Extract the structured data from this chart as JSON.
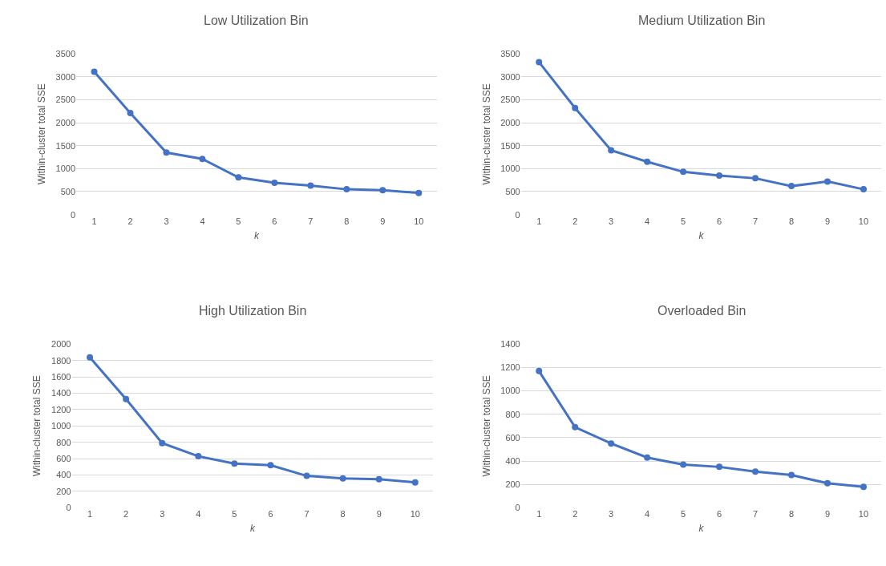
{
  "chart_data": [
    {
      "type": "line",
      "title": "Low Utilization Bin",
      "xlabel": "k",
      "ylabel": "Within-cluster total SSE",
      "categories": [
        "1",
        "2",
        "3",
        "4",
        "5",
        "6",
        "7",
        "8",
        "9",
        "10"
      ],
      "series": [
        {
          "color": "#4472c4",
          "values": [
            3110,
            2210,
            1350,
            1210,
            810,
            690,
            630,
            550,
            530,
            470
          ]
        }
      ],
      "ylim": [
        0,
        3500
      ],
      "yticks": [
        0,
        500,
        1000,
        1500,
        2000,
        2500,
        3000,
        3500
      ],
      "grid": "y",
      "marker": "circle",
      "line_style": "solid"
    },
    {
      "type": "line",
      "title": "Medium Utilization Bin",
      "xlabel": "k",
      "ylabel": "Within-cluster total SSE",
      "categories": [
        "1",
        "2",
        "3",
        "4",
        "5",
        "6",
        "7",
        "8",
        "9",
        "10"
      ],
      "series": [
        {
          "color": "#4472c4",
          "values": [
            3320,
            2320,
            1400,
            1150,
            930,
            850,
            790,
            620,
            720,
            550
          ]
        }
      ],
      "ylim": [
        0,
        3500
      ],
      "yticks": [
        0,
        500,
        1000,
        1500,
        2000,
        2500,
        3000,
        3500
      ],
      "grid": "y",
      "marker": "circle",
      "line_style": "solid"
    },
    {
      "type": "line",
      "title": "High Utilization Bin",
      "xlabel": "k",
      "ylabel": "Within-cluster total SSE",
      "categories": [
        "1",
        "2",
        "3",
        "4",
        "5",
        "6",
        "7",
        "8",
        "9",
        "10"
      ],
      "series": [
        {
          "color": "#4472c4",
          "values": [
            1840,
            1330,
            790,
            630,
            540,
            520,
            390,
            360,
            350,
            310
          ]
        }
      ],
      "ylim": [
        0,
        2000
      ],
      "yticks": [
        0,
        200,
        400,
        600,
        800,
        1000,
        1200,
        1400,
        1600,
        1800,
        2000
      ],
      "grid": "y",
      "marker": "circle",
      "line_style": "solid"
    },
    {
      "type": "line",
      "title": "Overloaded Bin",
      "xlabel": "k",
      "ylabel": "Within-cluster total SSE",
      "categories": [
        "1",
        "2",
        "3",
        "4",
        "5",
        "6",
        "7",
        "8",
        "9",
        "10"
      ],
      "series": [
        {
          "color": "#4472c4",
          "values": [
            1170,
            690,
            550,
            430,
            370,
            350,
            310,
            280,
            210,
            180
          ]
        }
      ],
      "ylim": [
        0,
        1400
      ],
      "yticks": [
        0,
        200,
        400,
        600,
        800,
        1000,
        1200,
        1400
      ],
      "grid": "y",
      "marker": "circle",
      "line_style": "solid"
    }
  ]
}
